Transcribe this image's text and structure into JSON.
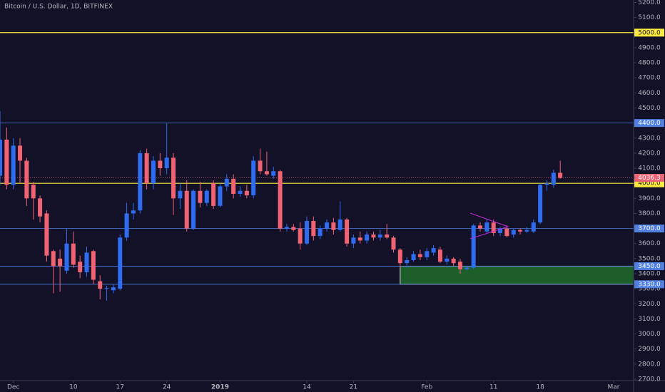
{
  "chart_data": {
    "type": "candlestick",
    "title": "Bitcoin / U.S. Dollar, 1D, BITFINEX",
    "x": [
      "Nov 29",
      "Nov 30",
      "Dec 1",
      "Dec 2",
      "Dec 3",
      "Dec 4",
      "Dec 5",
      "Dec 6",
      "Dec 7",
      "Dec 8",
      "Dec 9",
      "Dec 10",
      "Dec 11",
      "Dec 12",
      "Dec 13",
      "Dec 14",
      "Dec 15",
      "Dec 16",
      "Dec 17",
      "Dec 18",
      "Dec 19",
      "Dec 20",
      "Dec 21",
      "Dec 22",
      "Dec 23",
      "Dec 24",
      "Dec 25",
      "Dec 26",
      "Dec 27",
      "Dec 28",
      "Dec 29",
      "Dec 30",
      "Dec 31",
      "Jan 1",
      "Jan 2",
      "Jan 3",
      "Jan 4",
      "Jan 5",
      "Jan 6",
      "Jan 7",
      "Jan 8",
      "Jan 9",
      "Jan 10",
      "Jan 11",
      "Jan 12",
      "Jan 13",
      "Jan 14",
      "Jan 15",
      "Jan 16",
      "Jan 17",
      "Jan 18",
      "Jan 19",
      "Jan 20",
      "Jan 21",
      "Jan 22",
      "Jan 23",
      "Jan 24",
      "Jan 25",
      "Jan 26",
      "Jan 27",
      "Jan 28",
      "Jan 29",
      "Jan 30",
      "Jan 31",
      "Feb 1",
      "Feb 2",
      "Feb 3",
      "Feb 4",
      "Feb 5",
      "Feb 6",
      "Feb 7",
      "Feb 8",
      "Feb 9",
      "Feb 10",
      "Feb 11",
      "Feb 12",
      "Feb 13",
      "Feb 14",
      "Feb 15",
      "Feb 16",
      "Feb 17",
      "Feb 18",
      "Feb 19",
      "Feb 20",
      "Feb 21"
    ],
    "open": [
      4050,
      4290,
      3990,
      4250,
      4150,
      3990,
      3900,
      3800,
      3550,
      3500,
      3420,
      3600,
      3480,
      3410,
      3550,
      3350,
      3300,
      3290,
      3300,
      3640,
      3800,
      3820,
      4200,
      4000,
      4150,
      4100,
      4170,
      3900,
      3950,
      3700,
      3950,
      3870,
      4000,
      3850,
      3980,
      4030,
      3930,
      3950,
      3920,
      4150,
      4080,
      4050,
      4080,
      3700,
      3710,
      3700,
      3600,
      3750,
      3650,
      3700,
      3740,
      3690,
      3760,
      3600,
      3640,
      3620,
      3660,
      3640,
      3660,
      3640,
      3560,
      3470,
      3490,
      3530,
      3510,
      3540,
      3560,
      3480,
      3500,
      3480,
      3430,
      3440,
      3720,
      3680,
      3740,
      3670,
      3700,
      3660,
      3690,
      3680,
      3680,
      3740,
      3990,
      3990,
      4070
    ],
    "high": [
      4480,
      4370,
      4300,
      4300,
      4170,
      4010,
      3920,
      3820,
      3560,
      3560,
      3700,
      3680,
      3520,
      3580,
      3560,
      3390,
      3320,
      3330,
      3660,
      3870,
      3870,
      4220,
      4230,
      4180,
      4200,
      4400,
      4200,
      4000,
      4020,
      3960,
      4010,
      3960,
      4020,
      4000,
      4060,
      4060,
      3980,
      3990,
      4180,
      4230,
      4210,
      4110,
      4090,
      3730,
      3730,
      3740,
      3780,
      3780,
      3720,
      3760,
      3770,
      3880,
      3770,
      3660,
      3680,
      3680,
      3680,
      3690,
      3730,
      3650,
      3570,
      3510,
      3550,
      3560,
      3570,
      3590,
      3580,
      3520,
      3510,
      3500,
      3450,
      3730,
      3740,
      3760,
      3760,
      3710,
      3720,
      3700,
      3700,
      3710,
      3760,
      4000,
      4020,
      4090,
      4150
    ],
    "low": [
      3990,
      3960,
      3960,
      4000,
      3850,
      3760,
      3740,
      3480,
      3270,
      3280,
      3400,
      3440,
      3370,
      3380,
      3330,
      3230,
      3220,
      3270,
      3290,
      3620,
      3760,
      3800,
      3960,
      3960,
      4050,
      4060,
      3790,
      3830,
      3680,
      3690,
      3840,
      3850,
      3830,
      3840,
      3950,
      3900,
      3910,
      3900,
      3900,
      4060,
      4050,
      4030,
      3680,
      3680,
      3680,
      3560,
      3590,
      3620,
      3630,
      3680,
      3660,
      3680,
      3580,
      3570,
      3600,
      3600,
      3620,
      3620,
      3630,
      3540,
      3440,
      3440,
      3480,
      3490,
      3490,
      3520,
      3470,
      3460,
      3450,
      3400,
      3420,
      3430,
      3680,
      3670,
      3650,
      3650,
      3640,
      3640,
      3660,
      3670,
      3670,
      3730,
      3950,
      3970,
      4030
    ],
    "close": [
      4290,
      3990,
      4250,
      4150,
      3900,
      3900,
      3780,
      3520,
      3450,
      3450,
      3600,
      3460,
      3410,
      3540,
      3360,
      3300,
      3305,
      3310,
      3640,
      3800,
      3820,
      4200,
      4000,
      4150,
      4100,
      4170,
      3900,
      3950,
      3700,
      3950,
      3870,
      3950,
      3850,
      3980,
      4030,
      3930,
      3950,
      3920,
      4150,
      4080,
      4060,
      4080,
      3700,
      3710,
      3690,
      3600,
      3750,
      3650,
      3700,
      3740,
      3690,
      3760,
      3600,
      3640,
      3620,
      3660,
      3640,
      3660,
      3640,
      3560,
      3470,
      3490,
      3530,
      3510,
      3550,
      3570,
      3480,
      3500,
      3470,
      3430,
      3440,
      3720,
      3700,
      3740,
      3670,
      3700,
      3650,
      3690,
      3680,
      3690,
      3740,
      3990,
      4000,
      4070,
      4036.3
    ],
    "up_color": "#2f6cf0",
    "down_color": "#ef6373",
    "xlim": [
      "Nov 29",
      "Mar 4"
    ],
    "xticks": [
      {
        "value": "Dec 1",
        "label": "Dec"
      },
      {
        "value": "Dec 10",
        "label": "10"
      },
      {
        "value": "Dec 17",
        "label": "17"
      },
      {
        "value": "Dec 24",
        "label": "24"
      },
      {
        "value": "Jan 1",
        "label": "2019"
      },
      {
        "value": "Jan 14",
        "label": "14"
      },
      {
        "value": "Jan 21",
        "label": "21"
      },
      {
        "value": "Feb 1",
        "label": "Feb"
      },
      {
        "value": "Feb 11",
        "label": "11"
      },
      {
        "value": "Feb 18",
        "label": "18"
      },
      {
        "value": "Mar 1",
        "label": "Mar"
      }
    ],
    "ylim": [
      2700,
      5200
    ],
    "yticks": [
      {
        "value": 2700,
        "label": "2700.0"
      },
      {
        "value": 2800,
        "label": "2800.0"
      },
      {
        "value": 2900,
        "label": "2900.0"
      },
      {
        "value": 3000,
        "label": "3000.0"
      },
      {
        "value": 3100,
        "label": "3100.0"
      },
      {
        "value": 3200,
        "label": "3200.0"
      },
      {
        "value": 3300,
        "label": "3300.0"
      },
      {
        "value": 3400,
        "label": "3400.0"
      },
      {
        "value": 3500,
        "label": "3500.0"
      },
      {
        "value": 3600,
        "label": "3600.0"
      },
      {
        "value": 3700,
        "label": "3700.0"
      },
      {
        "value": 3800,
        "label": "3800.0"
      },
      {
        "value": 3900,
        "label": "3900.0"
      },
      {
        "value": 4000,
        "label": "4000.0"
      },
      {
        "value": 4100,
        "label": "4100.0"
      },
      {
        "value": 4200,
        "label": "4200.0"
      },
      {
        "value": 4300,
        "label": "4300.0"
      },
      {
        "value": 4400,
        "label": "4400.0"
      },
      {
        "value": 4500,
        "label": "4500.0"
      },
      {
        "value": 4600,
        "label": "4600.0"
      },
      {
        "value": 4700,
        "label": "4700.0"
      },
      {
        "value": 4800,
        "label": "4800.0"
      },
      {
        "value": 4900,
        "label": "4900.0"
      },
      {
        "value": 5000,
        "label": "5000.0"
      },
      {
        "value": 5100,
        "label": "5100.0"
      },
      {
        "value": 5200,
        "label": "5200.0"
      }
    ],
    "levels": [
      {
        "value": 5000,
        "label": "5000.0",
        "color": "#ffeb3b"
      },
      {
        "value": 4400,
        "label": "4400.0",
        "color": "#4f7fe0"
      },
      {
        "value": 4000,
        "label": "4000.0",
        "color": "#ffeb3b"
      },
      {
        "value": 3700,
        "label": "3700.0",
        "color": "#4f7fe0"
      },
      {
        "value": 3450,
        "label": "3450.0",
        "color": "#4f7fe0"
      },
      {
        "value": 3330,
        "label": "3330.0",
        "color": "#4f7fe0"
      }
    ],
    "last_price": {
      "value": 4036.3,
      "label": "4036.3",
      "color": "#ef6373"
    },
    "zone": {
      "from": "Jan 28",
      "low": 3330,
      "high": 3450,
      "color": "#1e5e2a"
    }
  }
}
